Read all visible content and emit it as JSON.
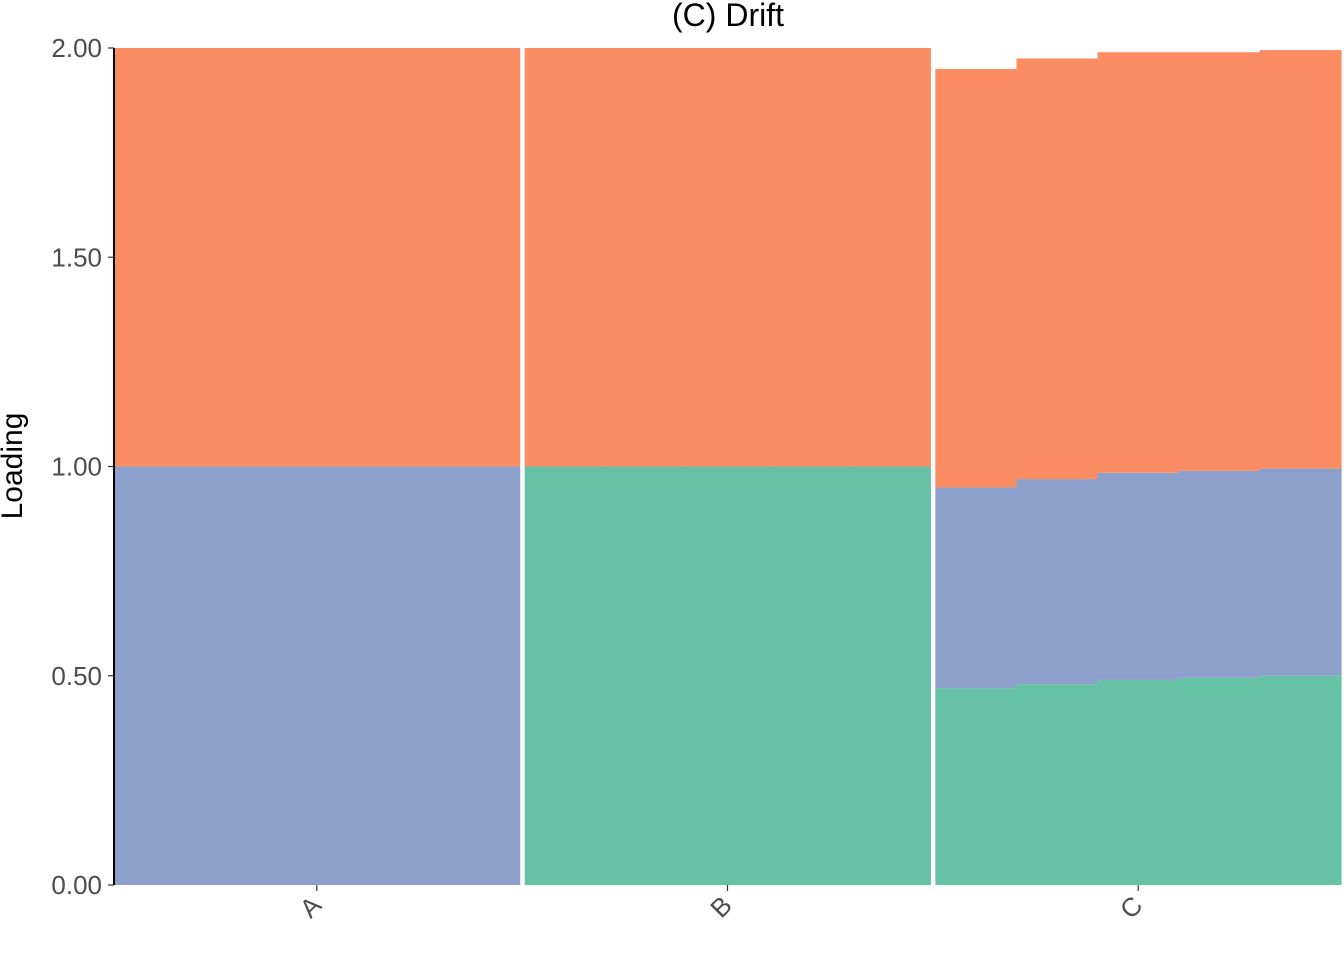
{
  "chart_data": {
    "type": "bar",
    "title": "(C) Drift",
    "xlabel": "",
    "ylabel": "Loading",
    "ylim": [
      0,
      2
    ],
    "yticks": [
      "0.00",
      "0.50",
      "1.00",
      "1.50",
      "2.00"
    ],
    "categories": [
      "A",
      "B",
      "C"
    ],
    "grid": false,
    "legend": "none",
    "series": [
      {
        "color": "#66C2A5",
        "values": [
          0.0,
          1.0,
          0.49
        ],
        "profile": [
          [
            0.0,
            0.0,
            0.0,
            0.0,
            0.0
          ],
          [
            1.0,
            1.0,
            1.0,
            1.0,
            1.0
          ],
          [
            0.47,
            0.48,
            0.49,
            0.495,
            0.5
          ]
        ]
      },
      {
        "color": "#8DA0CB",
        "values": [
          1.0,
          0.0,
          0.49
        ],
        "profile": [
          [
            1.0,
            1.0,
            1.0,
            1.0,
            1.0
          ],
          [
            0.0,
            0.0,
            0.0,
            0.0,
            0.0
          ],
          [
            0.48,
            0.49,
            0.495,
            0.495,
            0.495
          ]
        ]
      },
      {
        "color": "#FC8D62",
        "values": [
          1.0,
          1.0,
          1.0
        ],
        "profile": [
          [
            1.0,
            1.0,
            1.0,
            1.0,
            1.0
          ],
          [
            1.0,
            1.0,
            1.0,
            1.0,
            1.0
          ],
          [
            1.0,
            1.005,
            1.005,
            1.0,
            1.0
          ]
        ]
      }
    ]
  }
}
